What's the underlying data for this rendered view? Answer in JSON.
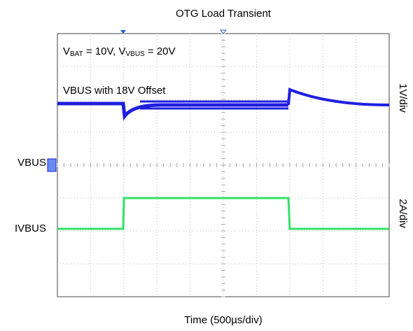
{
  "chart_data": {
    "type": "oscilloscope",
    "title": "OTG Load Transient",
    "x_label": "Time (500µs/div)",
    "conditions": [
      "V",
      "BAT",
      " = 10V, ",
      "V",
      "VBUS",
      " = 20V"
    ],
    "annotation": "VBUS with 18V Offset",
    "channels": [
      {
        "name": "VBUS",
        "scale": "1V/div",
        "color": "#1f1fe0"
      },
      {
        "name": "IVBUS",
        "scale": "2A/div",
        "color": "#33e066"
      }
    ]
  }
}
